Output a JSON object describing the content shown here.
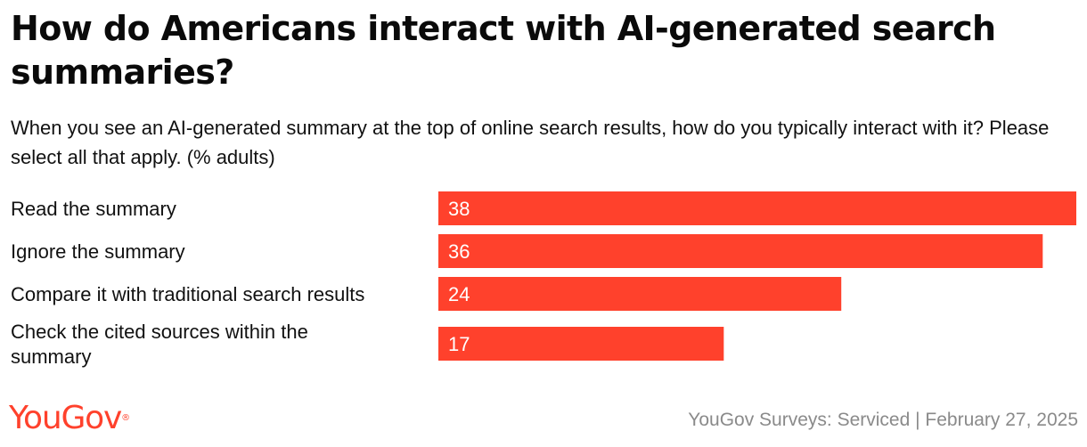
{
  "title": "How do Americans interact with AI-generated search summaries?",
  "subtitle": "When you see an AI-generated summary at the top of online search results, how do you typically interact with it? Please select all that apply. (% adults)",
  "brand": {
    "logo_text": "YouGov",
    "color": "#ff412c"
  },
  "footer": {
    "source": "YouGov Surveys: Serviced | February 27, 2025"
  },
  "chart_data": {
    "type": "bar",
    "orientation": "horizontal",
    "title": "How do Americans interact with AI-generated search summaries?",
    "subtitle": "When you see an AI-generated summary at the top of online search results, how do you typically interact with it? Please select all that apply. (% adults)",
    "categories": [
      [
        "Read the summary"
      ],
      [
        "Ignore the summary"
      ],
      [
        "Compare it with traditional search results"
      ],
      [
        "Check the cited sources within the",
        "summary"
      ]
    ],
    "values": [
      38,
      36,
      24,
      17
    ],
    "value_labels": [
      "38",
      "36",
      "24",
      "17"
    ],
    "bar_color": "#ff412c",
    "xlim": [
      0,
      38
    ],
    "grid": false,
    "legend": "none"
  }
}
